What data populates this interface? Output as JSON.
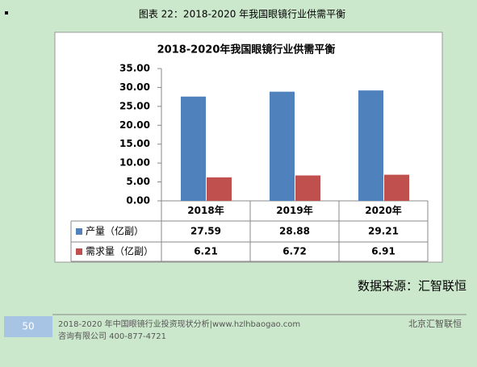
{
  "caption": "图表 22：2018-2020 年我国眼镜行业供需平衡",
  "chart_data": {
    "type": "bar",
    "title": "2018-2020年我国眼镜行业供需平衡",
    "categories": [
      "2018年",
      "2019年",
      "2020年"
    ],
    "series": [
      {
        "name": "产量（亿副）",
        "color": "#4f81bd",
        "values": [
          27.59,
          28.88,
          29.21
        ]
      },
      {
        "name": "需求量（亿副）",
        "color": "#c0504d",
        "values": [
          6.21,
          6.72,
          6.91
        ]
      }
    ],
    "ylim": [
      0,
      35
    ],
    "yticks": [
      {
        "value": 0,
        "label": "0.00"
      },
      {
        "value": 5,
        "label": "5.00"
      },
      {
        "value": 10,
        "label": "10.00"
      },
      {
        "value": 15,
        "label": "15.00"
      },
      {
        "value": 20,
        "label": "20.00"
      },
      {
        "value": 25,
        "label": "25.00"
      },
      {
        "value": 30,
        "label": "30.00"
      },
      {
        "value": 35,
        "label": "35.00"
      }
    ]
  },
  "source": "数据来源：汇智联恒",
  "footer": {
    "page_number": "50",
    "line1": "2018-2020 年中国眼镜行业投资现状分析|www.hzlhbaogao.com",
    "line2": "咨询有限公司  400-877-4721",
    "right": "北京汇智联恒"
  }
}
